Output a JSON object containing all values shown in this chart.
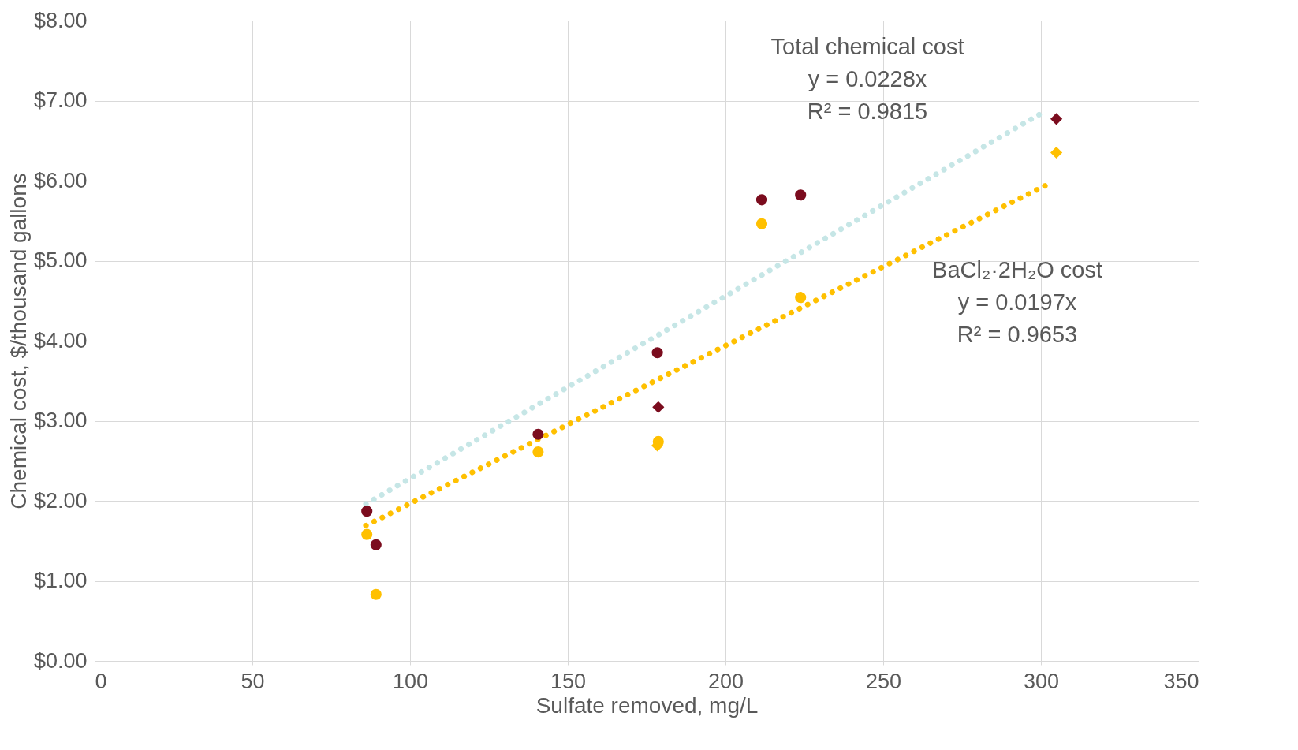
{
  "chart_data": {
    "type": "scatter",
    "xlabel": "Sulfate removed, mg/L",
    "ylabel": "Chemical cost, $/thousand gallons",
    "xlim": [
      0,
      350
    ],
    "xticks": [
      0,
      50,
      100,
      150,
      200,
      250,
      300,
      350
    ],
    "ylim": [
      0,
      8
    ],
    "yticks": [
      {
        "value": 0,
        "label": "$0.00"
      },
      {
        "value": 1,
        "label": "$1.00"
      },
      {
        "value": 2,
        "label": "$2.00"
      },
      {
        "value": 3,
        "label": "$3.00"
      },
      {
        "value": 4,
        "label": "$4.00"
      },
      {
        "value": 5,
        "label": "$5.00"
      },
      {
        "value": 6,
        "label": "$6.00"
      },
      {
        "value": 7,
        "label": "$7.00"
      },
      {
        "value": 8,
        "label": "$8.00"
      }
    ],
    "grid": true,
    "series": [
      {
        "type": "line",
        "color": "#c6e6e6",
        "line_style": "dotted",
        "x": [
          86,
          301
        ],
        "values": [
          1.96,
          6.86
        ]
      },
      {
        "type": "line",
        "color": "#ffc000",
        "line_style": "dotted",
        "x": [
          86,
          302
        ],
        "values": [
          1.69,
          5.95
        ]
      },
      {
        "marker": "circle",
        "color": "#7b0c1e",
        "x": [
          86.3,
          89.2,
          140.6,
          178.4,
          211.5,
          223.8
        ],
        "values": [
          1.87,
          1.45,
          2.83,
          3.85,
          5.76,
          5.82
        ]
      },
      {
        "marker": "diamond",
        "color": "#7b0c1e",
        "x": [
          178.7,
          304.9
        ],
        "values": [
          3.17,
          6.77
        ]
      },
      {
        "marker": "circle",
        "color": "#ffc000",
        "x": [
          86.3,
          89.2,
          140.6,
          178.7,
          211.5,
          223.8
        ],
        "values": [
          1.58,
          0.83,
          2.61,
          2.74,
          5.46,
          4.54
        ]
      },
      {
        "marker": "diamond",
        "color": "#ffc000",
        "x": [
          178.4,
          304.9
        ],
        "values": [
          2.69,
          6.35
        ]
      }
    ],
    "annotations": [
      "Total chemical cost\ny = 0.0228x\nR² = 0.9815",
      "BaCl₂·2H₂O cost\ny = 0.0197x\nR² = 0.9653"
    ]
  }
}
